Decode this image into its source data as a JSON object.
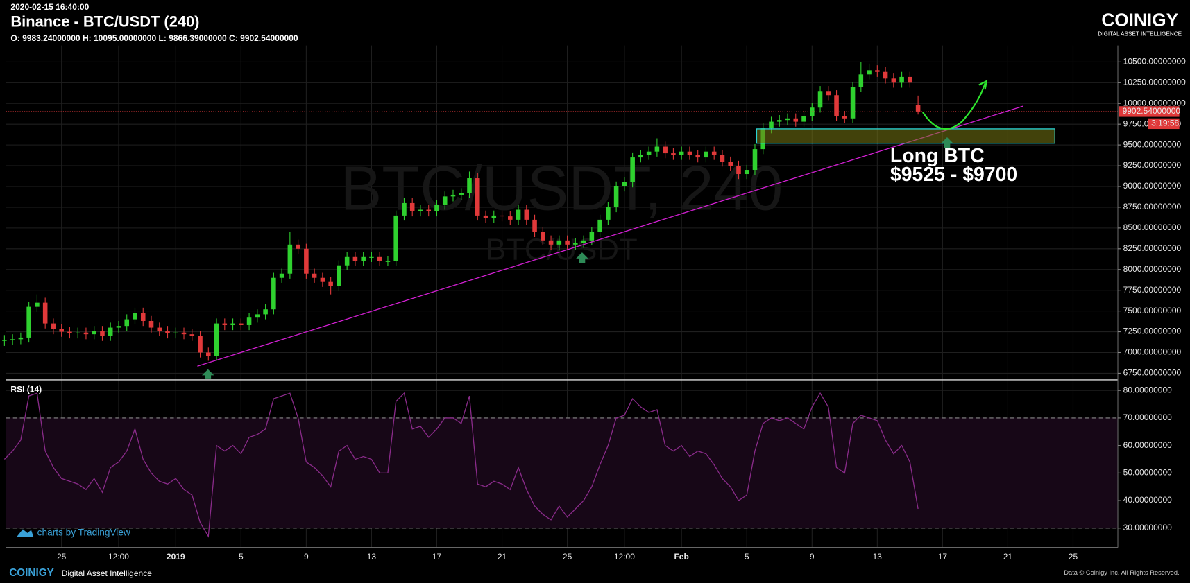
{
  "chart_data": [
    {
      "type": "candlestick",
      "timestamp": "2020-02-15 16:40:00",
      "title": "Binance - BTC/USDT (240)",
      "subtitle": "O: 9983.24000000 H: 10095.00000000 L: 9866.39000000 C: 9902.54000000",
      "watermark": "BTC/USDT, 240",
      "watermark_sub": "BTC/USDT",
      "annotation": [
        "Long BTC",
        "$9525 - $9700"
      ],
      "price_label": "9902.54000000",
      "countdown": "3:19:58",
      "up_color": "#2fd12f",
      "down_color": "#e0393a",
      "grid": true,
      "categories": [
        null,
        null,
        null,
        null,
        null,
        null,
        null,
        "25",
        null,
        null,
        null,
        null,
        null,
        null,
        "12:00",
        null,
        null,
        null,
        null,
        null,
        null,
        "2019",
        null,
        null,
        null,
        null,
        null,
        null,
        null,
        "5",
        null,
        null,
        null,
        null,
        null,
        null,
        null,
        "9",
        null,
        null,
        null,
        null,
        null,
        null,
        null,
        "13",
        null,
        null,
        null,
        null,
        null,
        null,
        null,
        "17",
        null,
        null,
        null,
        null,
        null,
        null,
        null,
        "21",
        null,
        null,
        null,
        null,
        null,
        null,
        null,
        "25",
        null,
        null,
        null,
        null,
        null,
        null,
        "12:00",
        null,
        null,
        null,
        null,
        null,
        null,
        "Feb",
        null,
        null,
        null,
        null,
        null,
        null,
        null,
        "5",
        null,
        null,
        null,
        null,
        null,
        null,
        null,
        "9",
        null,
        null,
        null,
        null,
        null,
        null,
        null,
        "13",
        null,
        null,
        null,
        null,
        null,
        null,
        null,
        "17",
        null,
        null,
        null,
        null,
        null,
        null,
        null,
        "21",
        null,
        null,
        null,
        null,
        null,
        null,
        null,
        "25"
      ],
      "open": [
        7140,
        7150,
        7160,
        7180,
        7550,
        7600,
        7350,
        7280,
        7250,
        7230,
        7240,
        7220,
        7260,
        7200,
        7300,
        7320,
        7400,
        7480,
        7380,
        7300,
        7260,
        7230,
        7240,
        7220,
        7200,
        7000,
        6960,
        7350,
        7330,
        7350,
        7330,
        7420,
        7460,
        7520,
        7900,
        7950,
        8300,
        8250,
        7950,
        7900,
        7850,
        7800,
        8050,
        8150,
        8100,
        8150,
        8150,
        8100,
        8100,
        8650,
        8800,
        8700,
        8720,
        8700,
        8780,
        8880,
        8900,
        8920,
        9100,
        8650,
        8620,
        8650,
        8640,
        8600,
        8720,
        8600,
        8450,
        8350,
        8300,
        8350,
        8300,
        8320,
        8350,
        8450,
        8600,
        8750,
        9000,
        9050,
        9350,
        9380,
        9420,
        9480,
        9400,
        9380,
        9420,
        9380,
        9350,
        9420,
        9380,
        9300,
        9250,
        9150,
        9200,
        9450,
        9700,
        9780,
        9800,
        9820,
        9780,
        9850,
        9950,
        10150,
        10100,
        9850,
        9820,
        10200,
        10350,
        10400,
        10380,
        10300,
        10250,
        10320,
        9983.24,
        null,
        null,
        null,
        null,
        null,
        null,
        null,
        null,
        null,
        null,
        null,
        null,
        null,
        null,
        null,
        null,
        null,
        null,
        null
      ],
      "high": [
        7210,
        7220,
        7240,
        7610,
        7700,
        7660,
        7410,
        7340,
        7310,
        7300,
        7300,
        7320,
        7320,
        7360,
        7380,
        7460,
        7540,
        7540,
        7440,
        7360,
        7320,
        7300,
        7300,
        7280,
        7260,
        7060,
        7410,
        7410,
        7410,
        7410,
        7480,
        7520,
        7580,
        7960,
        8010,
        8450,
        8360,
        8310,
        8010,
        7960,
        7910,
        8110,
        8210,
        8210,
        8210,
        8210,
        8210,
        8160,
        8710,
        8860,
        8860,
        8780,
        8780,
        8840,
        8940,
        8960,
        8980,
        9180,
        9160,
        8710,
        8710,
        8710,
        8700,
        8780,
        8780,
        8660,
        8510,
        8410,
        8410,
        8410,
        8380,
        8410,
        8510,
        8660,
        8810,
        9060,
        9110,
        9410,
        9440,
        9480,
        9580,
        9540,
        9460,
        9480,
        9480,
        9440,
        9480,
        9480,
        9440,
        9360,
        9310,
        9260,
        9510,
        9760,
        9840,
        9860,
        9880,
        9880,
        9910,
        10010,
        10210,
        10210,
        10160,
        9910,
        10260,
        10500,
        10480,
        10460,
        10440,
        10360,
        10380,
        10380,
        10095,
        null,
        null,
        null,
        null,
        null,
        null,
        null,
        null,
        null,
        null,
        null,
        null,
        null,
        null,
        null,
        null,
        null,
        null,
        null
      ],
      "low": [
        7080,
        7090,
        7100,
        7120,
        7490,
        7290,
        7220,
        7190,
        7170,
        7170,
        7160,
        7160,
        7140,
        7140,
        7240,
        7260,
        7340,
        7320,
        7240,
        7200,
        7170,
        7170,
        7160,
        7140,
        6940,
        6900,
        6900,
        7270,
        7270,
        7270,
        7270,
        7360,
        7400,
        7460,
        7840,
        7890,
        8190,
        7890,
        7840,
        7790,
        7700,
        7740,
        7990,
        8040,
        8040,
        8090,
        8040,
        8040,
        8040,
        8590,
        8640,
        8640,
        8640,
        8640,
        8720,
        8820,
        8840,
        8860,
        8590,
        8560,
        8560,
        8580,
        8540,
        8540,
        8540,
        8390,
        8290,
        8240,
        8240,
        8240,
        8240,
        8260,
        8290,
        8390,
        8540,
        8690,
        8940,
        8990,
        9290,
        9320,
        9360,
        9340,
        9320,
        9320,
        9320,
        9290,
        9290,
        9320,
        9240,
        9190,
        9090,
        9090,
        9140,
        9390,
        9640,
        9720,
        9740,
        9720,
        9720,
        9790,
        9890,
        10040,
        9790,
        9760,
        9760,
        10140,
        10290,
        10320,
        10240,
        10190,
        10190,
        10190,
        9866.39,
        null,
        null,
        null,
        null,
        null,
        null,
        null,
        null,
        null,
        null,
        null,
        null,
        null,
        null,
        null,
        null,
        null,
        null,
        null
      ],
      "close": [
        7150,
        7160,
        7180,
        7550,
        7600,
        7350,
        7280,
        7250,
        7230,
        7240,
        7220,
        7260,
        7200,
        7300,
        7320,
        7400,
        7480,
        7380,
        7300,
        7260,
        7230,
        7240,
        7220,
        7200,
        7000,
        6960,
        7350,
        7330,
        7350,
        7330,
        7420,
        7460,
        7520,
        7900,
        7950,
        8300,
        8250,
        7950,
        7900,
        7850,
        7800,
        8050,
        8150,
        8100,
        8150,
        8150,
        8100,
        8100,
        8650,
        8800,
        8700,
        8720,
        8700,
        8780,
        8880,
        8900,
        8920,
        9100,
        8650,
        8620,
        8650,
        8640,
        8600,
        8720,
        8600,
        8450,
        8350,
        8300,
        8350,
        8300,
        8320,
        8350,
        8450,
        8600,
        8750,
        9000,
        9050,
        9350,
        9380,
        9420,
        9480,
        9400,
        9380,
        9420,
        9380,
        9350,
        9420,
        9380,
        9300,
        9250,
        9150,
        9200,
        9450,
        9700,
        9780,
        9800,
        9820,
        9780,
        9850,
        9950,
        10150,
        10100,
        9850,
        9820,
        10200,
        10350,
        10400,
        10380,
        10300,
        10250,
        10320,
        10250,
        9902.54,
        null,
        null,
        null,
        null,
        null,
        null,
        null,
        null,
        null,
        null,
        null,
        null,
        null,
        null,
        null,
        null,
        null,
        null,
        null
      ],
      "ylim": [
        6680,
        10680
      ],
      "yticks": [
        {
          "value": 6750,
          "label": "6750.00000000"
        },
        {
          "value": 7000,
          "label": "7000.00000000"
        },
        {
          "value": 7250,
          "label": "7250.00000000"
        },
        {
          "value": 7500,
          "label": "7500.00000000"
        },
        {
          "value": 7750,
          "label": "7750.00000000"
        },
        {
          "value": 8000,
          "label": "8000.00000000"
        },
        {
          "value": 8250,
          "label": "8250.00000000"
        },
        {
          "value": 8500,
          "label": "8500.00000000"
        },
        {
          "value": 8750,
          "label": "8750.00000000"
        },
        {
          "value": 9000,
          "label": "9000.00000000"
        },
        {
          "value": 9250,
          "label": "9250.00000000"
        },
        {
          "value": 9500,
          "label": "9500.00000000"
        },
        {
          "value": 9750,
          "label": "9750.00000000"
        },
        {
          "value": 10000,
          "label": "10000.00000000"
        },
        {
          "value": 10250,
          "label": "10250.00000000"
        },
        {
          "value": 10500,
          "label": "10500.00000000"
        }
      ]
    },
    {
      "type": "line",
      "title": "RSI (14)",
      "color": "#8a2b8a",
      "band": [
        30,
        70
      ],
      "ylim": [
        23,
        83.3
      ],
      "yticks": [
        {
          "value": 30,
          "label": "30.00000000"
        },
        {
          "value": 40,
          "label": "40.00000000"
        },
        {
          "value": 50,
          "label": "50.00000000"
        },
        {
          "value": 60,
          "label": "60.00000000"
        },
        {
          "value": 70,
          "label": "70.00000000"
        },
        {
          "value": 80,
          "label": "80.00000000"
        }
      ],
      "values": [
        55,
        58,
        62,
        78,
        79,
        58,
        52,
        48,
        47,
        46,
        44,
        48,
        43,
        52,
        54,
        58,
        66,
        55,
        50,
        47,
        46,
        48,
        44,
        42,
        32,
        27,
        60,
        58,
        60,
        57,
        63,
        64,
        66,
        77,
        78,
        79,
        70,
        54,
        52,
        49,
        45,
        58,
        60,
        55,
        56,
        55,
        50,
        50,
        76,
        79,
        66,
        67,
        63,
        66,
        70,
        70,
        68,
        78,
        46,
        45,
        47,
        46,
        44,
        52,
        44,
        38,
        35,
        33,
        38,
        34,
        37,
        40,
        45,
        53,
        60,
        70,
        71,
        77,
        74,
        72,
        73,
        60,
        58,
        60,
        56,
        58,
        57,
        53,
        48,
        45,
        40,
        42,
        58,
        68,
        70,
        69,
        70,
        68,
        66,
        74,
        79,
        74,
        52,
        50,
        68,
        71,
        70,
        69,
        62,
        57,
        60,
        54,
        37
      ]
    }
  ],
  "branding": {
    "logo": "COINIGY",
    "logo_sub": "DIGITAL ASSET INTELLIGENCE",
    "tradingview": "charts by TradingView",
    "footer_logo": "COINIGY",
    "footer_sub": "Digital Asset Intelligence",
    "copyright": "Data © Coinigy Inc. All Rights Reserved."
  }
}
